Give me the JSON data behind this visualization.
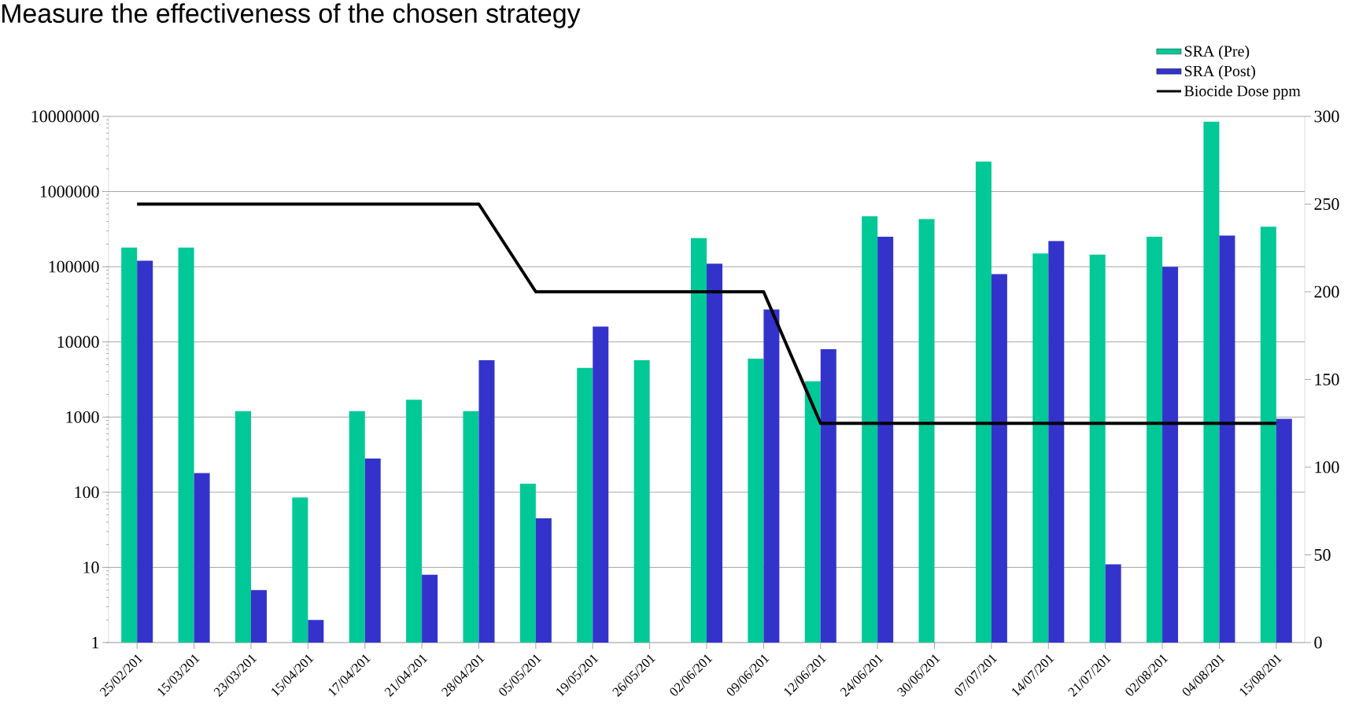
{
  "chart_data": {
    "type": "bar",
    "title": "Measure the effectiveness of the chosen strategy",
    "categories": [
      "25/02/201",
      "15/03/201",
      "23/03/201",
      "15/04/201",
      "17/04/201",
      "21/04/201",
      "28/04/201",
      "05/05/201",
      "19/05/201",
      "26/05/201",
      "02/06/201",
      "09/06/201",
      "12/06/201",
      "24/06/201",
      "30/06/201",
      "07/07/201",
      "14/07/201",
      "21/07/201",
      "02/08/201",
      "04/08/201",
      "15/08/201"
    ],
    "series": [
      {
        "name": "SRA (Pre)",
        "color": "#00c896",
        "values": [
          180000,
          180000,
          1200,
          85,
          1200,
          1700,
          1200,
          130,
          4500,
          5700,
          240000,
          6000,
          3000,
          470000,
          430000,
          2500000,
          150000,
          145000,
          250000,
          8500000,
          340000
        ]
      },
      {
        "name": "SRA (Post)",
        "color": "#3333cc",
        "values": [
          120000,
          180,
          5,
          2,
          280,
          8,
          5700,
          45,
          16000,
          null,
          110000,
          27000,
          8000,
          250000,
          null,
          80000,
          220000,
          11,
          100000,
          260000,
          950
        ]
      },
      {
        "name": "Biocide Dose ppm",
        "type": "line",
        "axis": "y2",
        "color": "#000000",
        "values": [
          250,
          250,
          250,
          250,
          250,
          250,
          250,
          200,
          200,
          200,
          200,
          200,
          125,
          125,
          125,
          125,
          125,
          125,
          125,
          125,
          125
        ]
      }
    ],
    "log": "y",
    "ylim": [
      1,
      10000000
    ],
    "yticks": [
      1,
      10,
      100,
      1000,
      10000,
      100000,
      1000000,
      10000000
    ],
    "y2lim": [
      0,
      300
    ],
    "y2ticks": [
      0,
      50,
      100,
      150,
      200,
      250,
      300
    ],
    "grid": "y",
    "legend": "top right",
    "marker": "none",
    "line_style": "solid"
  }
}
